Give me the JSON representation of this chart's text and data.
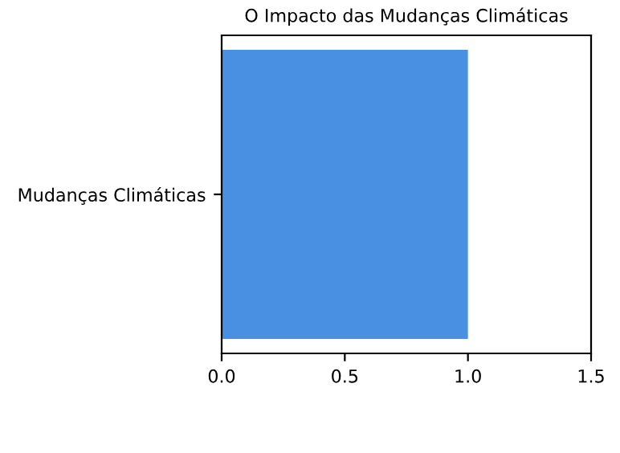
{
  "chart_data": {
    "type": "bar",
    "orientation": "horizontal",
    "title": "O Impacto das Mudanças Climáticas",
    "categories": [
      "Mudanças Climáticas"
    ],
    "series": [
      {
        "color": "#4a90e2",
        "values": [
          1.0
        ]
      }
    ],
    "xlim": [
      0,
      1.5
    ],
    "xticks": [
      {
        "value": 0,
        "label": "0.0"
      },
      {
        "value": 0.5,
        "label": "0.5"
      },
      {
        "value": 1.0,
        "label": "1.0"
      },
      {
        "value": 1.5,
        "label": "1.5"
      }
    ],
    "grid": false
  }
}
